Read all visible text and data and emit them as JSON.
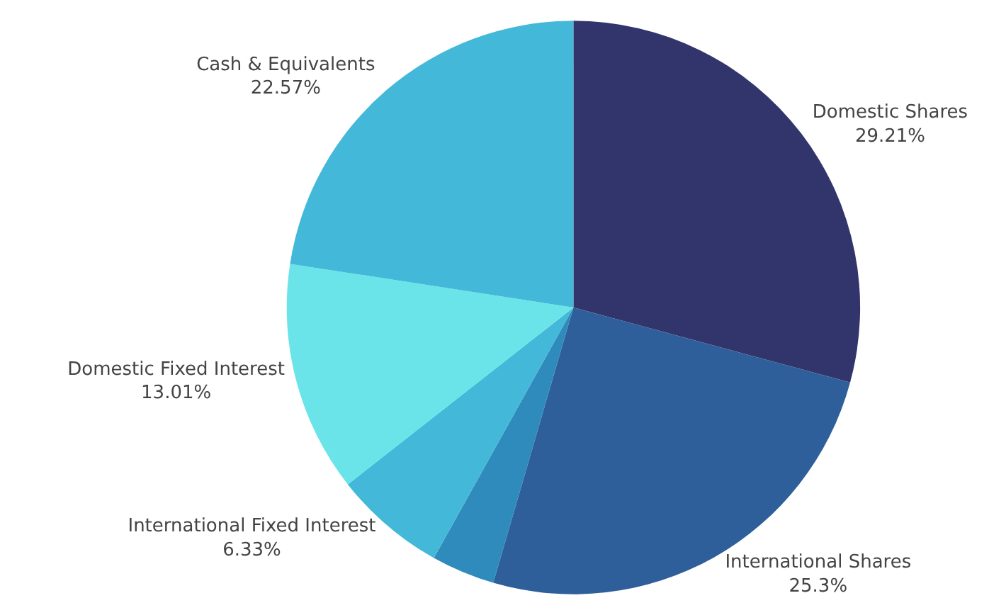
{
  "chart_data": {
    "type": "pie",
    "categories": [
      "Domestic Shares",
      "International Shares",
      null,
      "International Fixed Interest",
      "Domestic Fixed Interest",
      "Cash & Equivalents"
    ],
    "values": [
      29.21,
      25.3,
      3.58,
      6.33,
      13.01,
      22.57
    ],
    "value_labels": [
      "29.21%",
      "25.3%",
      null,
      "6.33%",
      "13.01%",
      "22.57%"
    ],
    "colors": [
      "#32346c",
      "#2e5f9a",
      "#2e8bbb",
      "#43b8d8",
      "#6ae4e8",
      "#43b8d8"
    ],
    "legend": false
  }
}
